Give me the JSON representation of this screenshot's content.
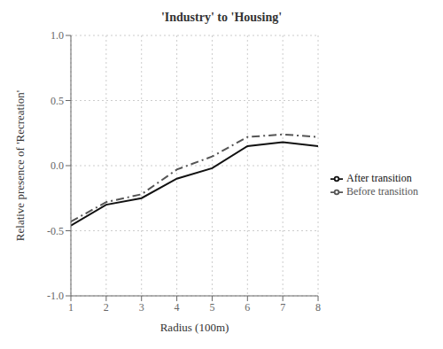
{
  "chart_data": {
    "type": "line",
    "title": "'Industry' to 'Housing'",
    "xlabel": "Radius (100m)",
    "ylabel": "Relative presence of 'Recreation'",
    "x": [
      1,
      2,
      3,
      4,
      5,
      6,
      7,
      8
    ],
    "series": [
      {
        "name": "Before transition",
        "color": "#555555",
        "line_style": "dashdot",
        "values": [
          -0.43,
          -0.28,
          -0.22,
          -0.03,
          0.07,
          0.22,
          0.24,
          0.22
        ]
      },
      {
        "name": "After transition",
        "color": "#111111",
        "line_style": "solid",
        "values": [
          -0.46,
          -0.3,
          -0.25,
          -0.1,
          -0.02,
          0.15,
          0.18,
          0.15
        ]
      }
    ],
    "xlim": [
      1,
      8
    ],
    "ylim": [
      -1.0,
      1.0
    ],
    "xticks": [
      1,
      2,
      3,
      4,
      5,
      6,
      7,
      8
    ],
    "yticks": [
      {
        "value": -1.0,
        "label": "-1.0"
      },
      -0.5,
      {
        "value": 0.0,
        "label": "0.0"
      },
      0.5,
      {
        "value": 1.0,
        "label": "1.0"
      }
    ],
    "grid": true,
    "legend": "right"
  }
}
